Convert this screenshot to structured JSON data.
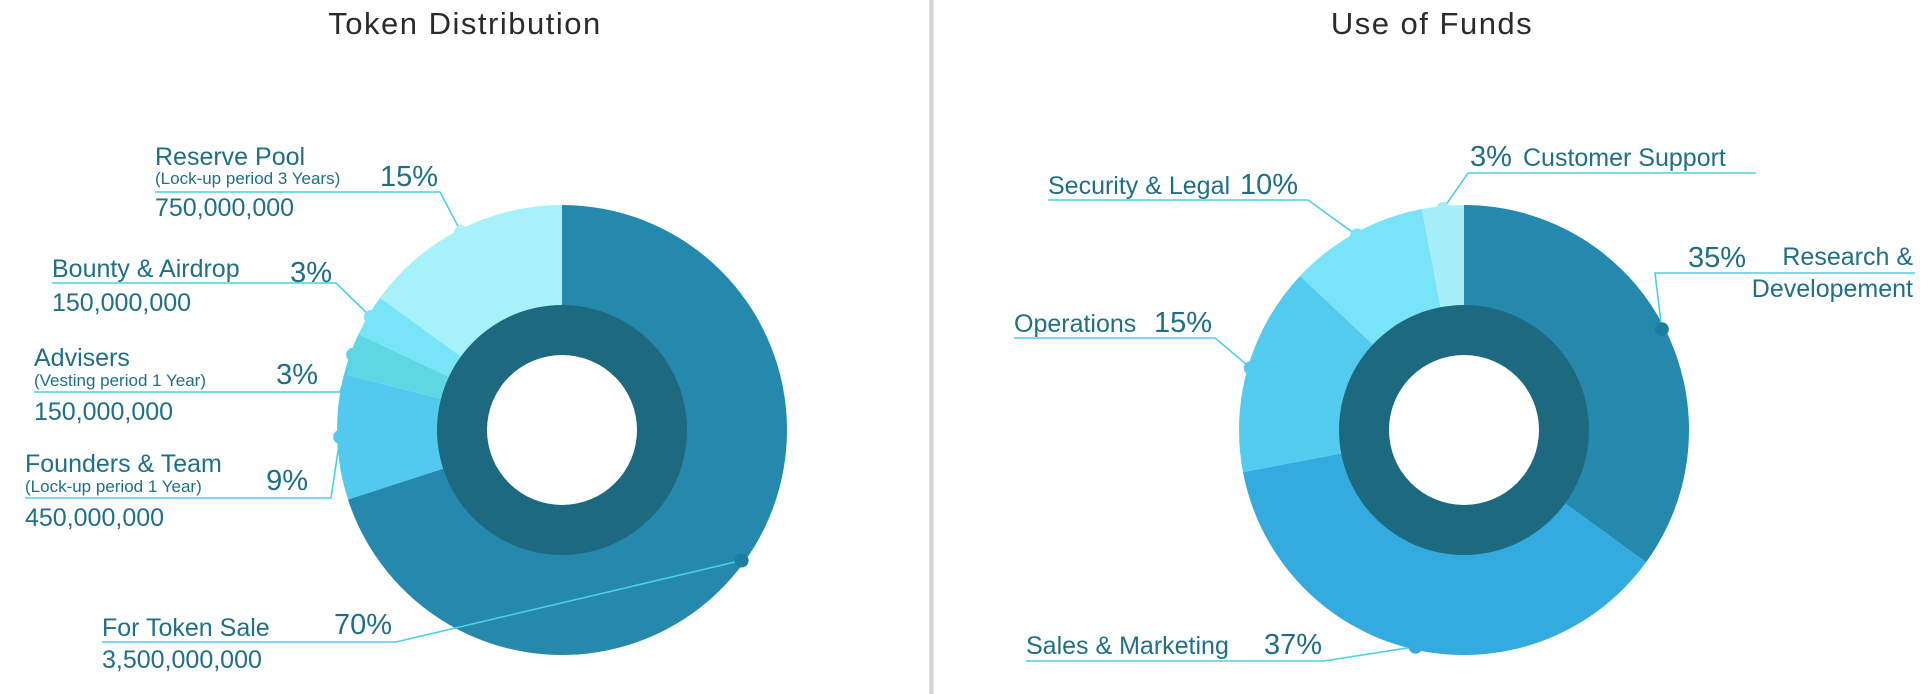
{
  "chart_data": [
    {
      "type": "pie",
      "title": "Token Distribution",
      "slices": [
        {
          "label": "For Token Sale",
          "sublabel": "",
          "amount": "3,500,000,000",
          "pct_label": "70%",
          "value": 70,
          "color": "#2588ad"
        },
        {
          "label": "Founders & Team",
          "sublabel": "(Lock-up period 1 Year)",
          "amount": "450,000,000",
          "pct_label": "9%",
          "value": 9,
          "color": "#52c9ef"
        },
        {
          "label": "Advisers",
          "sublabel": "(Vesting period 1 Year)",
          "amount": "150,000,000",
          "pct_label": "3%",
          "value": 3,
          "color": "#5cd7e3"
        },
        {
          "label": "Bounty & Airdrop",
          "sublabel": "",
          "amount": "150,000,000",
          "pct_label": "3%",
          "value": 3,
          "color": "#78e4f8"
        },
        {
          "label": "Reserve Pool",
          "sublabel": "(Lock-up period 3 Years)",
          "amount": "750,000,000",
          "pct_label": "15%",
          "value": 15,
          "color": "#a6f1fa"
        }
      ]
    },
    {
      "type": "pie",
      "title": "Use of Funds",
      "slices": [
        {
          "label": "Research & Developement",
          "pct_label": "35%",
          "value": 35,
          "color": "#2588ad"
        },
        {
          "label": "Sales & Marketing",
          "pct_label": "37%",
          "value": 37,
          "color": "#33abdf"
        },
        {
          "label": "Operations",
          "pct_label": "15%",
          "value": 15,
          "color": "#53cbef"
        },
        {
          "label": "Security & Legal",
          "pct_label": "10%",
          "value": 10,
          "color": "#79e3f8"
        },
        {
          "label": "Customer Support",
          "pct_label": "3%",
          "value": 3,
          "color": "#a8eef8"
        }
      ]
    }
  ],
  "colors": {
    "inner_ring": "#1d6a80",
    "label_text": "#1f6f87",
    "leader_line": "#4dd0e1",
    "title_text": "#2b2b2b"
  }
}
